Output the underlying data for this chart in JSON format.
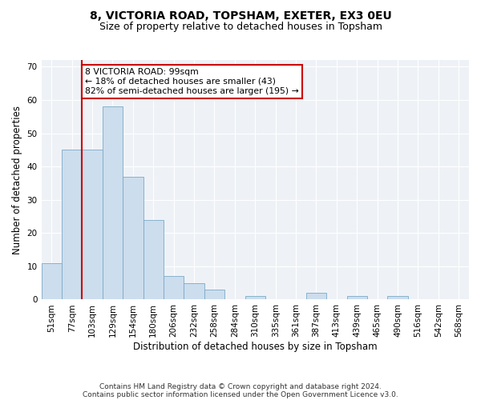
{
  "title": "8, VICTORIA ROAD, TOPSHAM, EXETER, EX3 0EU",
  "subtitle": "Size of property relative to detached houses in Topsham",
  "xlabel": "Distribution of detached houses by size in Topsham",
  "ylabel": "Number of detached properties",
  "categories": [
    "51sqm",
    "77sqm",
    "103sqm",
    "129sqm",
    "154sqm",
    "180sqm",
    "206sqm",
    "232sqm",
    "258sqm",
    "284sqm",
    "310sqm",
    "335sqm",
    "361sqm",
    "387sqm",
    "413sqm",
    "439sqm",
    "465sqm",
    "490sqm",
    "516sqm",
    "542sqm",
    "568sqm"
  ],
  "values": [
    11,
    45,
    45,
    58,
    37,
    24,
    7,
    5,
    3,
    0,
    1,
    0,
    0,
    2,
    0,
    1,
    0,
    1,
    0,
    0,
    0
  ],
  "bar_color": "#ccdded",
  "bar_edge_color": "#7aaac8",
  "marker_line_color": "#cc0000",
  "annotation_line1": "8 VICTORIA ROAD: 99sqm",
  "annotation_line2": "← 18% of detached houses are smaller (43)",
  "annotation_line3": "82% of semi-detached houses are larger (195) →",
  "annotation_box_color": "#ffffff",
  "annotation_box_edge": "#cc0000",
  "ylim": [
    0,
    72
  ],
  "yticks": [
    0,
    10,
    20,
    30,
    40,
    50,
    60,
    70
  ],
  "background_color": "#eef2f7",
  "grid_color": "#ffffff",
  "footer1": "Contains HM Land Registry data © Crown copyright and database right 2024.",
  "footer2": "Contains public sector information licensed under the Open Government Licence v3.0.",
  "title_fontsize": 10,
  "subtitle_fontsize": 9,
  "tick_fontsize": 7.5,
  "ylabel_fontsize": 8.5,
  "xlabel_fontsize": 8.5,
  "footer_fontsize": 6.5
}
